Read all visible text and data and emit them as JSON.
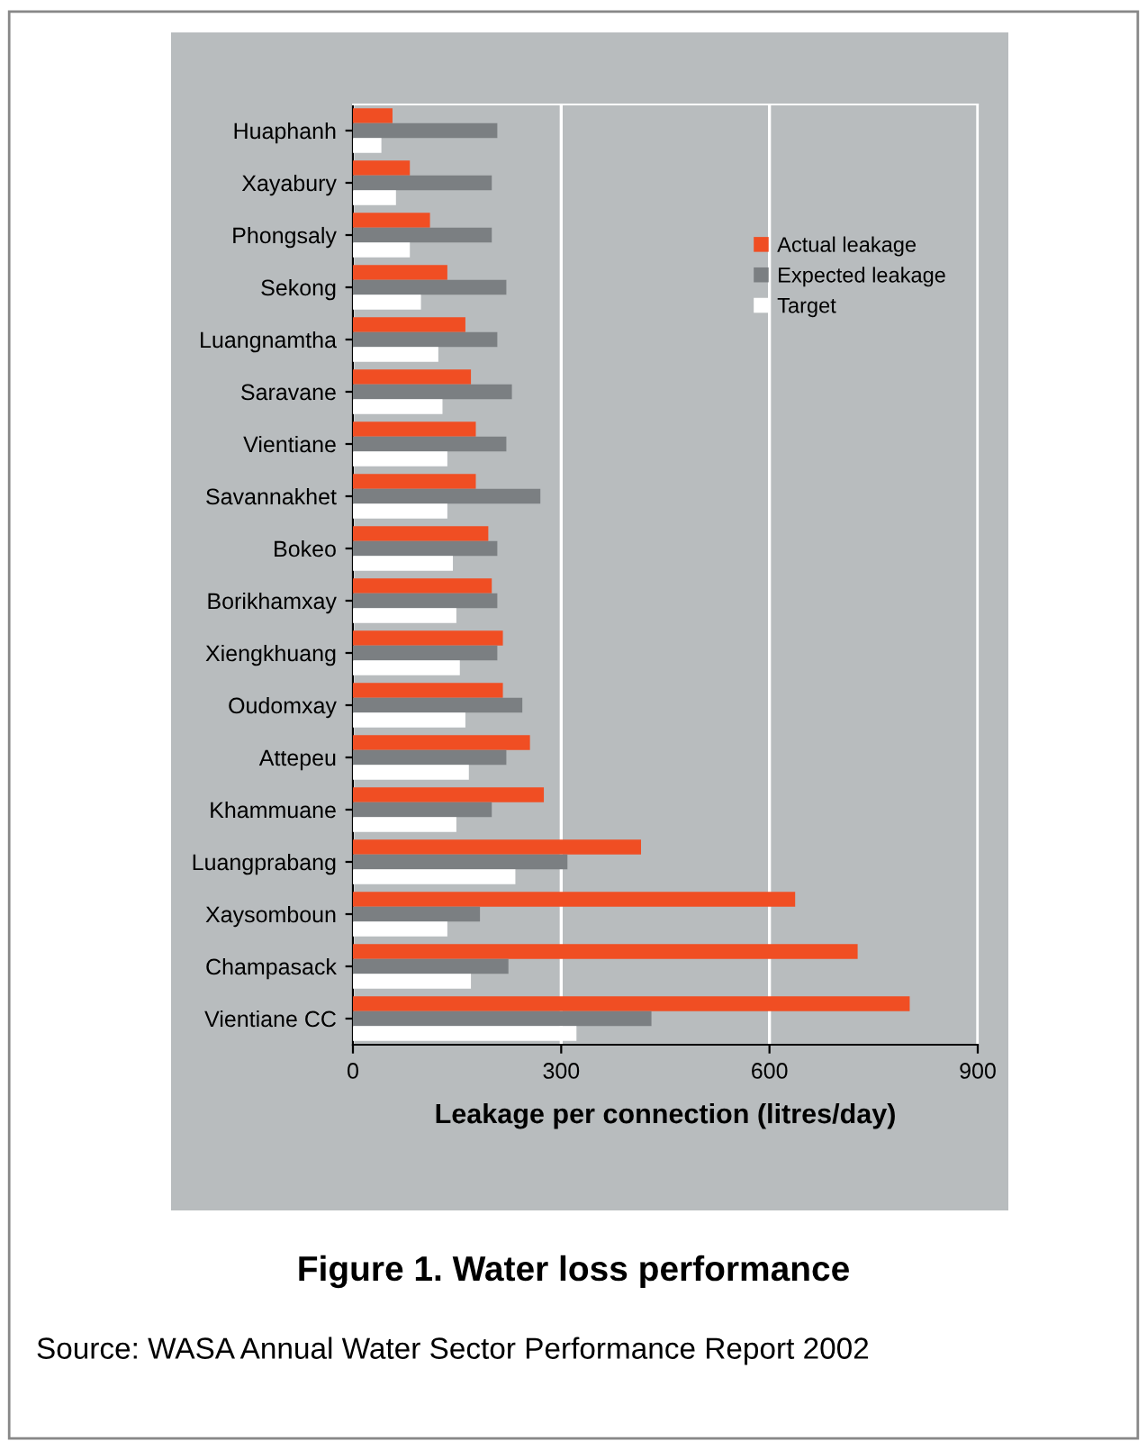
{
  "chart_data": {
    "type": "bar",
    "orientation": "horizontal",
    "title": "Figure 1. Water loss performance",
    "xlabel": "Leakage per connection (litres/day)",
    "annotations": [
      "Source: WASA Annual Water Sector Performance Report 2002"
    ],
    "categories": [
      "Huaphanh",
      "Xayabury",
      "Phongsaly",
      "Sekong",
      "Luangnamtha",
      "Saravane",
      "Vientiane",
      "Savannakhet",
      "Bokeo",
      "Borikhamxay",
      "Xiengkhuang",
      "Oudomxay",
      "Attepeu",
      "Khammuane",
      "Luangprabang",
      "Xaysomboun",
      "Champasack",
      "Vientiane CC"
    ],
    "series": [
      {
        "name": "Actual leakage",
        "color": "#f04e23",
        "values": [
          57,
          82,
          111,
          136,
          162,
          170,
          177,
          177,
          195,
          200,
          216,
          216,
          255,
          275,
          415,
          637,
          727,
          802
        ]
      },
      {
        "name": "Expected leakage",
        "color": "#7b7f82",
        "values": [
          208,
          200,
          200,
          221,
          208,
          229,
          221,
          270,
          208,
          208,
          208,
          244,
          221,
          200,
          309,
          183,
          224,
          430
        ]
      },
      {
        "name": "Target",
        "color": "#ffffff",
        "values": [
          41,
          62,
          82,
          98,
          123,
          129,
          136,
          136,
          144,
          149,
          154,
          162,
          167,
          149,
          234,
          136,
          170,
          322
        ]
      }
    ],
    "xlim": [
      0,
      900
    ],
    "xticks": [
      0,
      300,
      600,
      900
    ],
    "grid": "x",
    "legend": "top right"
  }
}
